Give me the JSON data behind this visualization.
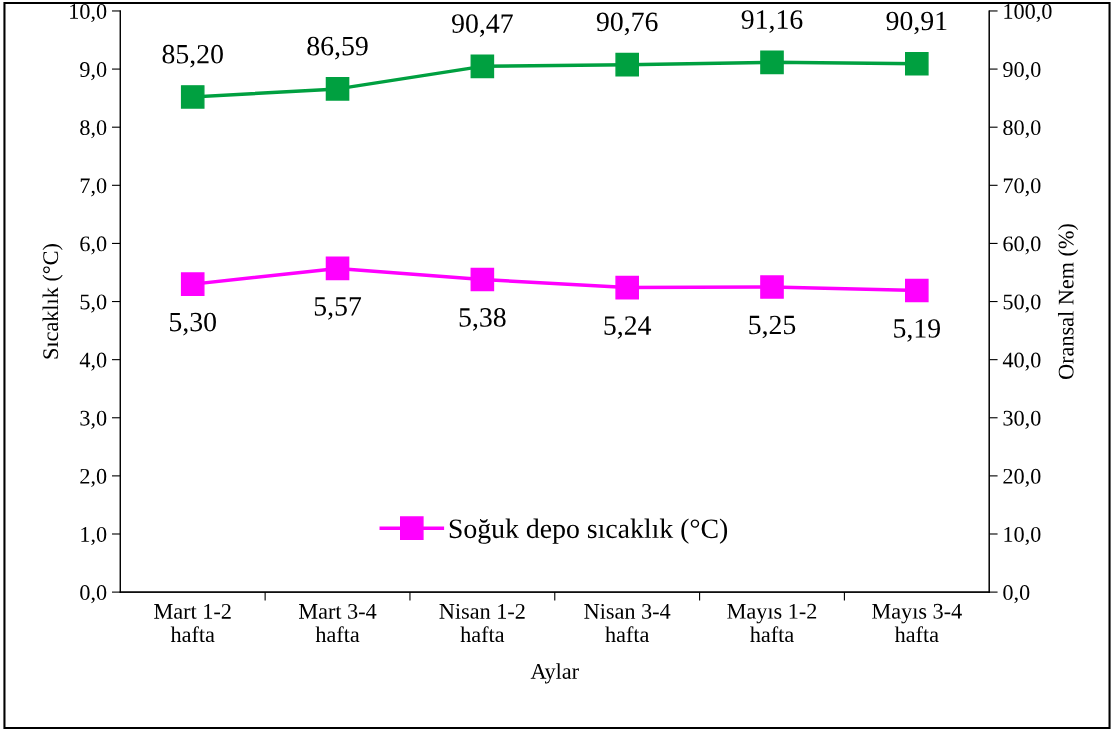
{
  "chart_data": {
    "type": "line",
    "xlabel": "Aylar",
    "ylabel": "Sıcaklık (°C)",
    "y2label": "Oransal Nem (%)",
    "categories": [
      "Mart 1-2\nhafta",
      "Mart 3-4\nhafta",
      "Nisan 1-2\nhafta",
      "Nisan 3-4\nhafta",
      "Mayıs 1-2\nhafta",
      "Mayıs 3-4\nhafta"
    ],
    "series": [
      {
        "name": "Soğuk depo sıcaklık (°C)",
        "color": "#ff00ff",
        "marker": "square",
        "values": [
          5.3,
          5.57,
          5.38,
          5.24,
          5.25,
          5.19
        ],
        "value_labels": [
          "5,30",
          "5,57",
          "5,38",
          "5,24",
          "5,25",
          "5,19"
        ]
      },
      {
        "color": "#00a040",
        "marker": "square",
        "axis": "y2",
        "values": [
          85.2,
          86.59,
          90.47,
          90.76,
          91.16,
          90.91
        ],
        "value_labels": [
          "85,20",
          "86,59",
          "90,47",
          "90,76",
          "91,16",
          "90,91"
        ]
      }
    ],
    "ylim": [
      0,
      10
    ],
    "yticks": [
      {
        "value": 0,
        "label": "0,0"
      },
      {
        "value": 1,
        "label": "1,0"
      },
      {
        "value": 2,
        "label": "2,0"
      },
      {
        "value": 3,
        "label": "3,0"
      },
      {
        "value": 4,
        "label": "4,0"
      },
      {
        "value": 5,
        "label": "5,0"
      },
      {
        "value": 6,
        "label": "6,0"
      },
      {
        "value": 7,
        "label": "7,0"
      },
      {
        "value": 8,
        "label": "8,0"
      },
      {
        "value": 9,
        "label": "9,0"
      },
      {
        "value": 10,
        "label": "10,0"
      }
    ],
    "y2lim": [
      0,
      100
    ],
    "y2ticks": [
      {
        "value": 0,
        "label": "0,0"
      },
      {
        "value": 10,
        "label": "10,0"
      },
      {
        "value": 20,
        "label": "20,0"
      },
      {
        "value": 30,
        "label": "30,0"
      },
      {
        "value": 40,
        "label": "40,0"
      },
      {
        "value": 50,
        "label": "50,0"
      },
      {
        "value": 60,
        "label": "60,0"
      },
      {
        "value": 70,
        "label": "70,0"
      },
      {
        "value": 80,
        "label": "80,0"
      },
      {
        "value": 90,
        "label": "90,0"
      },
      {
        "value": 100,
        "label": "100,0"
      }
    ],
    "grid": false,
    "legend": "bottom",
    "line_style": "solid"
  }
}
